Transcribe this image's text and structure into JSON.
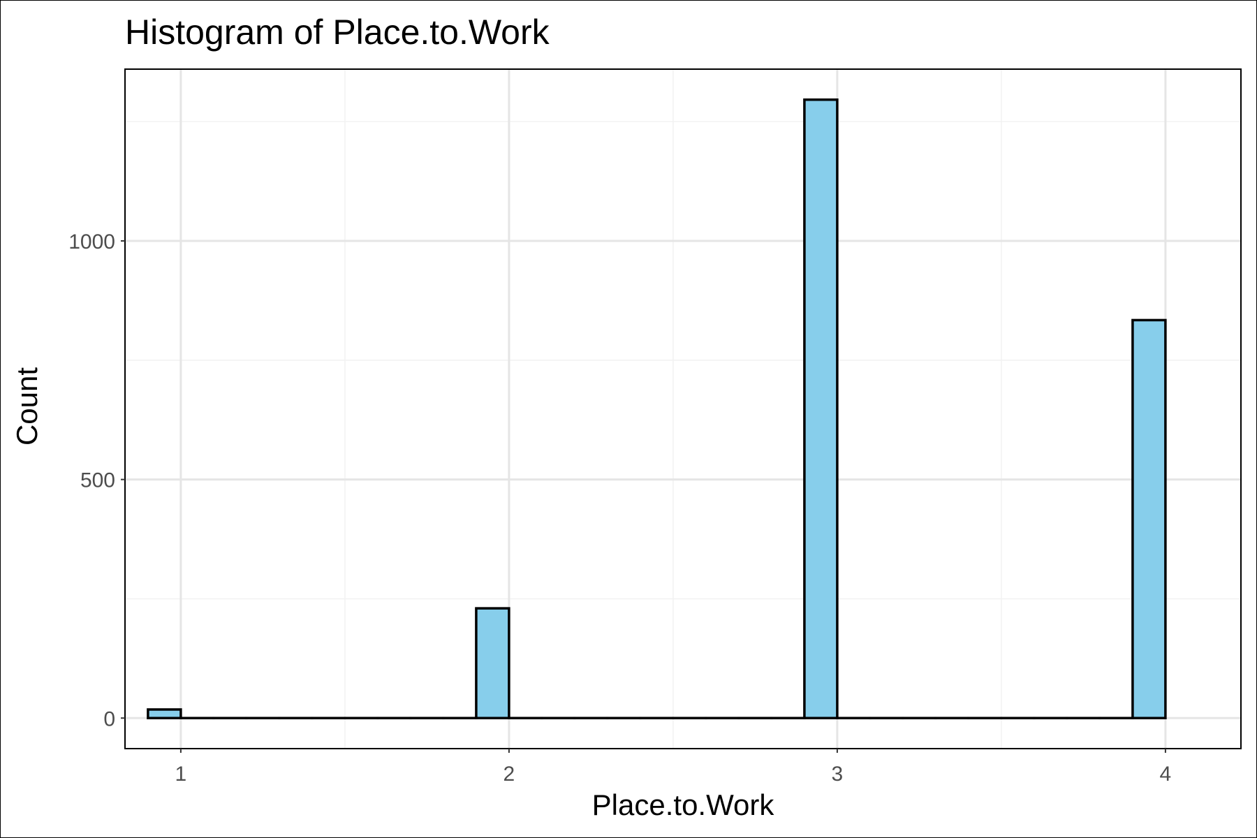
{
  "chart_data": {
    "type": "bar",
    "title": "Histogram of Place.to.Work",
    "xlabel": "Place.to.Work",
    "ylabel": "Count",
    "xlim": [
      0.83,
      4.23
    ],
    "ylim": [
      -64,
      1360
    ],
    "x_ticks": [
      1,
      2,
      3,
      4
    ],
    "x_tick_labels": [
      "1",
      "2",
      "3",
      "4"
    ],
    "y_ticks": [
      0,
      500,
      1000
    ],
    "y_tick_labels": [
      "0",
      "500",
      "1000"
    ],
    "bins": [
      {
        "x0": 0.9,
        "x1": 1.0,
        "count": 18
      },
      {
        "x0": 1.0,
        "x1": 1.1,
        "count": 0
      },
      {
        "x0": 1.1,
        "x1": 1.2,
        "count": 0
      },
      {
        "x0": 1.2,
        "x1": 1.3,
        "count": 0
      },
      {
        "x0": 1.3,
        "x1": 1.4,
        "count": 0
      },
      {
        "x0": 1.4,
        "x1": 1.5,
        "count": 0
      },
      {
        "x0": 1.5,
        "x1": 1.6,
        "count": 0
      },
      {
        "x0": 1.6,
        "x1": 1.7,
        "count": 0
      },
      {
        "x0": 1.7,
        "x1": 1.8,
        "count": 0
      },
      {
        "x0": 1.8,
        "x1": 1.9,
        "count": 0
      },
      {
        "x0": 1.9,
        "x1": 2.0,
        "count": 230
      },
      {
        "x0": 2.0,
        "x1": 2.1,
        "count": 0
      },
      {
        "x0": 2.1,
        "x1": 2.2,
        "count": 0
      },
      {
        "x0": 2.2,
        "x1": 2.3,
        "count": 0
      },
      {
        "x0": 2.3,
        "x1": 2.4,
        "count": 0
      },
      {
        "x0": 2.4,
        "x1": 2.5,
        "count": 0
      },
      {
        "x0": 2.5,
        "x1": 2.6,
        "count": 0
      },
      {
        "x0": 2.6,
        "x1": 2.7,
        "count": 0
      },
      {
        "x0": 2.7,
        "x1": 2.8,
        "count": 0
      },
      {
        "x0": 2.8,
        "x1": 2.9,
        "count": 0
      },
      {
        "x0": 2.9,
        "x1": 3.0,
        "count": 1296
      },
      {
        "x0": 3.0,
        "x1": 3.1,
        "count": 0
      },
      {
        "x0": 3.1,
        "x1": 3.2,
        "count": 0
      },
      {
        "x0": 3.2,
        "x1": 3.3,
        "count": 0
      },
      {
        "x0": 3.3,
        "x1": 3.4,
        "count": 0
      },
      {
        "x0": 3.4,
        "x1": 3.5,
        "count": 0
      },
      {
        "x0": 3.5,
        "x1": 3.6,
        "count": 0
      },
      {
        "x0": 3.6,
        "x1": 3.7,
        "count": 0
      },
      {
        "x0": 3.7,
        "x1": 3.8,
        "count": 0
      },
      {
        "x0": 3.8,
        "x1": 3.9,
        "count": 0
      },
      {
        "x0": 3.9,
        "x1": 4.0,
        "count": 834
      }
    ],
    "fill_color": "#87ceeb",
    "outline_color": "#000000",
    "grid": true,
    "legend": "none"
  }
}
